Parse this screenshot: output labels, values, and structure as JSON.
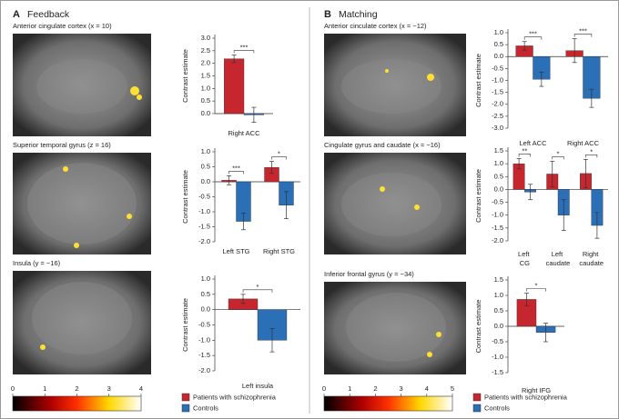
{
  "panels": [
    {
      "label": "A",
      "title": "Feedback",
      "colorbar_lim": [
        0,
        4
      ],
      "colorbar_ticks": [
        0,
        1,
        2,
        3,
        4
      ]
    },
    {
      "label": "B",
      "title": "Matching",
      "colorbar_lim": [
        0,
        5
      ],
      "colorbar_ticks": [
        0,
        1,
        2,
        3,
        4,
        5
      ]
    }
  ],
  "chart_data": [
    {
      "type": "bar",
      "title": "Anterior cingulate cortex (x = 10)",
      "ylabel": "Contrast estimate",
      "categories": [
        "Right ACC"
      ],
      "annotations": [
        "***"
      ],
      "series": [
        {
          "name": "Patients with schizophrenia",
          "color": "#c6262e",
          "values": [
            2.18
          ],
          "errors": [
            0.15
          ]
        },
        {
          "name": "Controls",
          "color": "#2b6fb6",
          "values": [
            -0.05
          ],
          "errors": [
            0.3
          ]
        }
      ],
      "ylim": [
        0,
        3
      ],
      "yticks": [
        {
          "value": 0,
          "label": "0.0"
        },
        0.5,
        {
          "value": 1,
          "label": "1.0"
        },
        1.5,
        {
          "value": 2,
          "label": "2.0"
        },
        2.5,
        {
          "value": 3,
          "label": "3.0"
        }
      ]
    },
    {
      "type": "bar",
      "title": "Superior temporal gyrus (z = 16)",
      "ylabel": "Contrast estimate",
      "categories": [
        "Left STG",
        "Right STG"
      ],
      "annotations": [
        "***",
        "*"
      ],
      "series": [
        {
          "name": "Patients with schizophrenia",
          "color": "#c6262e",
          "values": [
            0.05,
            0.48
          ],
          "errors": [
            0.15,
            0.2
          ]
        },
        {
          "name": "Controls",
          "color": "#2b6fb6",
          "values": [
            -1.32,
            -0.78
          ],
          "errors": [
            0.28,
            0.45
          ]
        }
      ],
      "ylim": [
        -2,
        1
      ],
      "yticks": [
        {
          "value": -2,
          "label": "-2.0"
        },
        -1.5,
        {
          "value": -1,
          "label": "-1.0"
        },
        -0.5,
        {
          "value": 0,
          "label": "0.0"
        },
        0.5,
        {
          "value": 1,
          "label": "1.0"
        }
      ]
    },
    {
      "type": "bar",
      "title": "Insula (y = −16)",
      "ylabel": "Contrast estimate",
      "categories": [
        "Left insula"
      ],
      "annotations": [
        "*"
      ],
      "series": [
        {
          "name": "Patients with schizophrenia",
          "color": "#c6262e",
          "values": [
            0.35
          ],
          "errors": [
            0.15
          ]
        },
        {
          "name": "Controls",
          "color": "#2b6fb6",
          "values": [
            -1.0
          ],
          "errors": [
            0.38
          ]
        }
      ],
      "ylim": [
        -2,
        1
      ],
      "yticks": [
        {
          "value": -2,
          "label": "-2.0"
        },
        -1.5,
        {
          "value": -1,
          "label": "-1.0"
        },
        -0.5,
        {
          "value": 0,
          "label": "0.0"
        },
        0.5,
        {
          "value": 1,
          "label": "1.0"
        }
      ]
    },
    {
      "type": "bar",
      "title": "Anterior cinculate cortex (x = −12)",
      "ylabel": "Contrast estimate",
      "categories": [
        "Left ACC",
        "Right ACC"
      ],
      "annotations": [
        "***",
        "***"
      ],
      "series": [
        {
          "name": "Patients with schizophrenia",
          "color": "#c6262e",
          "values": [
            0.45,
            0.25
          ],
          "errors": [
            0.18,
            0.5
          ]
        },
        {
          "name": "Controls",
          "color": "#2b6fb6",
          "values": [
            -0.95,
            -1.75
          ],
          "errors": [
            0.3,
            0.38
          ]
        }
      ],
      "ylim": [
        -3,
        1
      ],
      "yticks": [
        {
          "value": -3,
          "label": "-3.0"
        },
        -2.5,
        {
          "value": -2,
          "label": "-2.0"
        },
        -1.5,
        {
          "value": -1,
          "label": "-1.0"
        },
        -0.5,
        {
          "value": 0,
          "label": "0.0"
        },
        0.5,
        {
          "value": 1,
          "label": "1.0"
        }
      ]
    },
    {
      "type": "bar",
      "title": "Cingulate gyrus and caudate (x = −16)",
      "ylabel": "Contrast estimate",
      "categories": [
        "Left CG",
        "Left caudate",
        "Right caudate"
      ],
      "annotations": [
        "**",
        "*",
        "*"
      ],
      "series": [
        {
          "name": "Patients with schizophrenia",
          "color": "#c6262e",
          "values": [
            1.0,
            0.6,
            0.62
          ],
          "errors": [
            0.2,
            0.5,
            0.55
          ]
        },
        {
          "name": "Controls",
          "color": "#2b6fb6",
          "values": [
            -0.1,
            -1.0,
            -1.4
          ],
          "errors": [
            0.3,
            0.6,
            0.5
          ]
        }
      ],
      "ylim": [
        -2,
        1.5
      ],
      "yticks": [
        {
          "value": -2,
          "label": "-2.0"
        },
        -1.5,
        {
          "value": -1,
          "label": "-1.0"
        },
        -0.5,
        {
          "value": 0,
          "label": "0.0"
        },
        0.5,
        {
          "value": 1,
          "label": "1.0"
        },
        1.5
      ]
    },
    {
      "type": "bar",
      "title": "Inferior frontal gyrus (y = −34)",
      "ylabel": "Contrast estimate",
      "categories": [
        "Right IFG"
      ],
      "annotations": [
        "*"
      ],
      "series": [
        {
          "name": "Patients with schizophrenia",
          "color": "#c6262e",
          "values": [
            0.87
          ],
          "errors": [
            0.2
          ]
        },
        {
          "name": "Controls",
          "color": "#2b6fb6",
          "values": [
            -0.2
          ],
          "errors": [
            0.3
          ]
        }
      ],
      "ylim": [
        -1.5,
        1.5
      ],
      "yticks": [
        -1.5,
        {
          "value": -1,
          "label": "-1.0"
        },
        -0.5,
        {
          "value": 0,
          "label": "0.0"
        },
        0.5,
        {
          "value": 1,
          "label": "1.0"
        },
        1.5
      ]
    }
  ]
}
